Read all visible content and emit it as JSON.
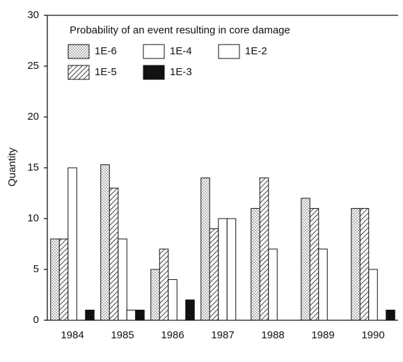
{
  "chart_data": {
    "type": "bar",
    "legend_title": "Probability of an event resulting in core damage",
    "y_label": "Quantity",
    "categories": [
      "1984",
      "1985",
      "1986",
      "1987",
      "1988",
      "1989",
      "1990"
    ],
    "series": [
      {
        "name": "1E-6",
        "color": "#bbbbbb",
        "pattern": "dots",
        "values": [
          8,
          15.3,
          5,
          14,
          11,
          12,
          11
        ]
      },
      {
        "name": "1E-5",
        "color": "#111111",
        "pattern": "hatch",
        "values": [
          8,
          13,
          7,
          9,
          14,
          11,
          11
        ]
      },
      {
        "name": "1E-4",
        "color": "#ffffff",
        "pattern": "solid",
        "values": [
          15,
          8,
          4,
          10,
          7,
          7,
          5
        ]
      },
      {
        "name": "1E-2",
        "color": "#ffffff",
        "pattern": "solid",
        "values": [
          0,
          1,
          0,
          10,
          0,
          0,
          0
        ]
      },
      {
        "name": "1E-3",
        "color": "#111111",
        "pattern": "solid",
        "values": [
          1,
          1,
          2,
          0,
          0,
          0,
          1
        ]
      }
    ],
    "ylim": [
      0,
      30
    ],
    "yticks": [
      0,
      5,
      10,
      15,
      20,
      25,
      30
    ],
    "legend": "top"
  }
}
